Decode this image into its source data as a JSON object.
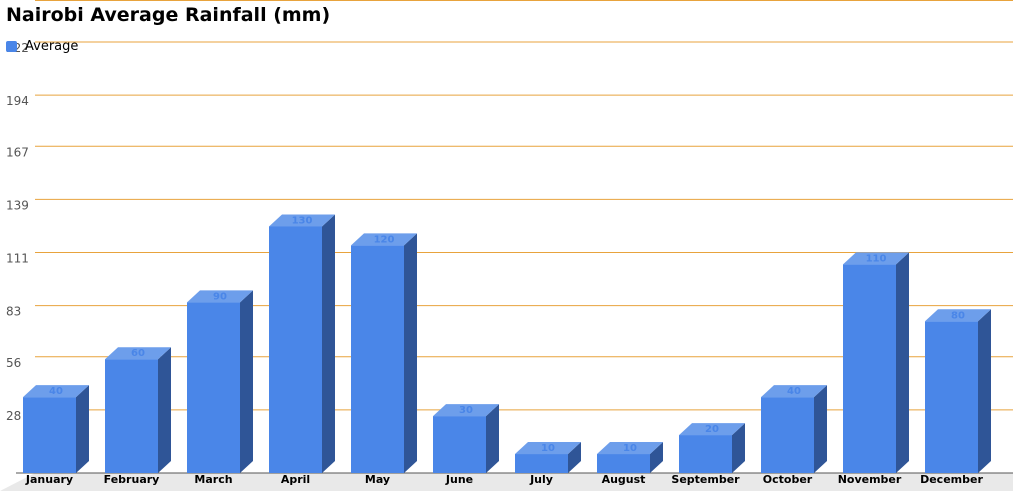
{
  "chart_data": {
    "type": "bar",
    "title": "Nairobi Average Rainfall (mm)",
    "categories": [
      "January",
      "February",
      "March",
      "April",
      "May",
      "June",
      "July",
      "August",
      "September",
      "October",
      "November",
      "December"
    ],
    "series": [
      {
        "name": "Average",
        "values": [
          40,
          60,
          90,
          130,
          120,
          30,
          10,
          10,
          20,
          40,
          110,
          80
        ]
      }
    ],
    "yticks": [
      "28",
      "56",
      "83",
      "111",
      "139",
      "167",
      "194",
      "222"
    ],
    "ylim": [
      0,
      222
    ],
    "grid": true,
    "legend_position": "top-left",
    "colors": {
      "bar_front": "#4a86e8",
      "bar_top": "#6d9eeb",
      "bar_side": "#2f5597",
      "grid": "#e8a33d",
      "data_label": "#4a86e8"
    }
  }
}
